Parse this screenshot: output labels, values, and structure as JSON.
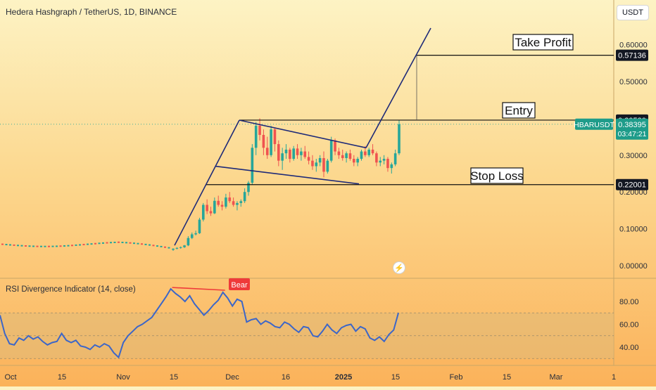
{
  "header": {
    "title": "Hedera Hashgraph / TetherUS, 1D, BINANCE",
    "currency": "USDT"
  },
  "indicator": {
    "title": "RSI Divergence Indicator (14, close)",
    "bear_label": "Bear"
  },
  "labels": {
    "take_profit": "Take Profit",
    "entry": "Entry",
    "stop_loss": "Stop Loss"
  },
  "colors": {
    "up": "#26a69a",
    "down": "#ef5350",
    "line": "#1e2a78",
    "rsi": "#3c66c8",
    "badge_dark": "#131722",
    "badge_teal": "#1e9c8a"
  },
  "chart_data": {
    "type": "candlestick",
    "price_axis": {
      "ticks": [
        {
          "value": 0.6,
          "label": "0.60000"
        },
        {
          "value": 0.5,
          "label": "0.50000"
        },
        {
          "value": 0.3,
          "label": "0.30000"
        },
        {
          "value": 0.2,
          "label": "0.20000"
        },
        {
          "value": 0.1,
          "label": "0.10000"
        },
        {
          "value": 0.0,
          "label": "0.00000"
        }
      ],
      "price_labels": [
        {
          "value": 0.57136,
          "label": "0.57136"
        },
        {
          "value": 0.3952,
          "label": "0.39520"
        },
        {
          "value": 0.22001,
          "label": "0.22001"
        }
      ],
      "current": {
        "symbol": "HBARUSDT",
        "value": 0.38395,
        "label": "0.38395",
        "countdown": "03:47:21"
      }
    },
    "time_axis": [
      "Oct",
      "15",
      "Nov",
      "15",
      "Dec",
      "16",
      "2025",
      "15",
      "Feb",
      "15",
      "Mar",
      "1"
    ],
    "levels": {
      "take_profit": 0.57136,
      "entry": 0.3952,
      "stop_loss": 0.22001
    },
    "rsi_axis": [
      {
        "value": 80,
        "label": "80.00"
      },
      {
        "value": 60,
        "label": "60.00"
      },
      {
        "value": 40,
        "label": "40.00"
      }
    ],
    "rsi_band": [
      30,
      70
    ],
    "candles": [
      [
        0.043,
        0.047,
        0.04,
        0.046
      ],
      [
        0.046,
        0.05,
        0.044,
        0.048
      ],
      [
        0.048,
        0.052,
        0.046,
        0.05
      ],
      [
        0.05,
        0.056,
        0.048,
        0.055
      ],
      [
        0.055,
        0.08,
        0.053,
        0.075
      ],
      [
        0.075,
        0.09,
        0.072,
        0.085
      ],
      [
        0.085,
        0.095,
        0.082,
        0.088
      ],
      [
        0.088,
        0.13,
        0.086,
        0.125
      ],
      [
        0.125,
        0.17,
        0.12,
        0.165
      ],
      [
        0.165,
        0.18,
        0.14,
        0.148
      ],
      [
        0.148,
        0.16,
        0.135,
        0.142
      ],
      [
        0.142,
        0.185,
        0.14,
        0.176
      ],
      [
        0.176,
        0.19,
        0.16,
        0.165
      ],
      [
        0.165,
        0.175,
        0.15,
        0.16
      ],
      [
        0.16,
        0.195,
        0.155,
        0.185
      ],
      [
        0.185,
        0.2,
        0.17,
        0.175
      ],
      [
        0.175,
        0.185,
        0.16,
        0.165
      ],
      [
        0.165,
        0.175,
        0.15,
        0.17
      ],
      [
        0.17,
        0.18,
        0.16,
        0.175
      ],
      [
        0.175,
        0.21,
        0.17,
        0.2
      ],
      [
        0.2,
        0.23,
        0.19,
        0.225
      ],
      [
        0.225,
        0.33,
        0.22,
        0.32
      ],
      [
        0.32,
        0.39,
        0.3,
        0.38
      ],
      [
        0.38,
        0.4,
        0.34,
        0.355
      ],
      [
        0.355,
        0.37,
        0.3,
        0.32
      ],
      [
        0.32,
        0.35,
        0.29,
        0.3
      ],
      [
        0.3,
        0.38,
        0.295,
        0.37
      ],
      [
        0.37,
        0.375,
        0.31,
        0.33
      ],
      [
        0.33,
        0.34,
        0.27,
        0.285
      ],
      [
        0.285,
        0.32,
        0.26,
        0.305
      ],
      [
        0.305,
        0.33,
        0.29,
        0.315
      ],
      [
        0.315,
        0.32,
        0.28,
        0.29
      ],
      [
        0.29,
        0.325,
        0.285,
        0.318
      ],
      [
        0.318,
        0.33,
        0.29,
        0.3
      ],
      [
        0.3,
        0.32,
        0.285,
        0.31
      ],
      [
        0.31,
        0.325,
        0.29,
        0.295
      ],
      [
        0.295,
        0.31,
        0.275,
        0.285
      ],
      [
        0.285,
        0.3,
        0.26,
        0.27
      ],
      [
        0.27,
        0.29,
        0.255,
        0.28
      ],
      [
        0.28,
        0.3,
        0.27,
        0.292
      ],
      [
        0.292,
        0.31,
        0.24,
        0.255
      ],
      [
        0.255,
        0.29,
        0.25,
        0.285
      ],
      [
        0.285,
        0.35,
        0.28,
        0.34
      ],
      [
        0.34,
        0.345,
        0.3,
        0.31
      ],
      [
        0.31,
        0.32,
        0.29,
        0.3
      ],
      [
        0.3,
        0.315,
        0.285,
        0.292
      ],
      [
        0.292,
        0.31,
        0.28,
        0.305
      ],
      [
        0.305,
        0.315,
        0.285,
        0.29
      ],
      [
        0.29,
        0.3,
        0.27,
        0.28
      ],
      [
        0.28,
        0.295,
        0.27,
        0.29
      ],
      [
        0.29,
        0.315,
        0.285,
        0.31
      ],
      [
        0.31,
        0.325,
        0.295,
        0.3
      ],
      [
        0.3,
        0.32,
        0.295,
        0.315
      ],
      [
        0.315,
        0.33,
        0.3,
        0.305
      ],
      [
        0.305,
        0.31,
        0.27,
        0.28
      ],
      [
        0.28,
        0.295,
        0.27,
        0.285
      ],
      [
        0.285,
        0.3,
        0.275,
        0.29
      ],
      [
        0.29,
        0.295,
        0.255,
        0.265
      ],
      [
        0.265,
        0.28,
        0.25,
        0.275
      ],
      [
        0.275,
        0.315,
        0.27,
        0.305
      ],
      [
        0.305,
        0.395,
        0.3,
        0.384
      ]
    ],
    "rsi": [
      68,
      52,
      43,
      42,
      48,
      46,
      50,
      47,
      49,
      45,
      42,
      44,
      45,
      52,
      46,
      44,
      46,
      41,
      40,
      38,
      42,
      40,
      43,
      41,
      35,
      31,
      44,
      50,
      54,
      58,
      60,
      63,
      66,
      72,
      78,
      84,
      91,
      87,
      84,
      80,
      85,
      78,
      73,
      68,
      72,
      77,
      81,
      88,
      83,
      76,
      82,
      80,
      62,
      64,
      65,
      60,
      63,
      61,
      58,
      57,
      62,
      60,
      56,
      53,
      58,
      57,
      50,
      49,
      54,
      60,
      55,
      52,
      57,
      59,
      60,
      54,
      58,
      56,
      48,
      46,
      49,
      45,
      51,
      55,
      70
    ],
    "rsi_divergence": {
      "label": "Bear",
      "from": 91,
      "to": 92
    },
    "trendlines": [
      {
        "name": "pole",
        "points": [
          [
            0.055,
            0
          ],
          [
            0.395,
            0
          ]
        ]
      },
      {
        "name": "flag-upper",
        "points": [
          [
            0.395,
            0
          ],
          [
            0.32,
            0
          ]
        ]
      },
      {
        "name": "flag-lower",
        "points": [
          [
            0.27,
            0
          ],
          [
            0.22,
            0
          ]
        ]
      },
      {
        "name": "breakout",
        "points": [
          [
            0.32,
            0
          ],
          [
            0.68,
            0
          ]
        ]
      }
    ]
  }
}
